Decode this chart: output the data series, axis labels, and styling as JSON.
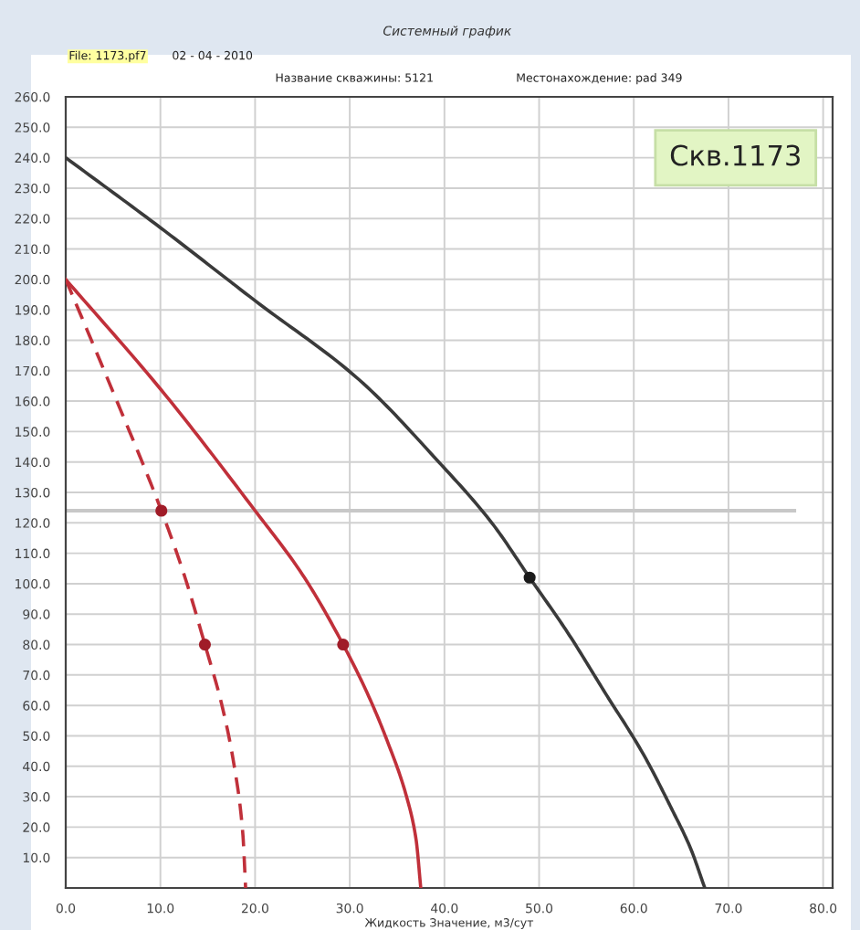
{
  "chart_data": {
    "type": "line",
    "title": "Системный график",
    "xlabel": "Жидкость Значение, м3/сут",
    "annotations": [
      "File: 1173.pf7",
      "02 - 04 - 2010",
      "Название скважины: 5121",
      "Местонахождение: pad 349",
      "Скв.1173"
    ],
    "series": [
      {
        "color": "#3a3a3a",
        "line_style": "solid",
        "x": [
          0,
          10,
          20,
          31,
          39.4,
          45,
          49,
          53,
          57,
          61,
          64,
          66,
          67.5
        ],
        "values": [
          240,
          217,
          193,
          167,
          140,
          120,
          102,
          84,
          64,
          44,
          26,
          13,
          0
        ]
      },
      {
        "color": "#c0303a",
        "line_style": "solid",
        "x": [
          0,
          10,
          20,
          25,
          29.3,
          32,
          34,
          36,
          37,
          37.5
        ],
        "values": [
          200,
          164,
          124,
          103,
          80,
          63,
          48,
          30,
          16,
          0
        ]
      },
      {
        "color": "#c0303a",
        "line_style": "dashed",
        "x": [
          0,
          5,
          10.1,
          12.5,
          14.7,
          16.5,
          17.8,
          18.7,
          19
        ],
        "values": [
          200,
          163,
          124,
          103,
          80,
          60,
          40,
          18,
          0
        ]
      },
      {
        "type": "scatter",
        "marker": "circle",
        "color": "#1a1a1a",
        "x": [
          49
        ],
        "values": [
          102
        ]
      },
      {
        "type": "scatter",
        "marker": "circle",
        "color": "#a01c28",
        "x": [
          29.3,
          10.1,
          14.7
        ],
        "values": [
          80,
          124,
          80
        ]
      }
    ],
    "ref_lines": [
      {
        "axis": "y",
        "value": 124,
        "color": "#c8c8c8"
      }
    ],
    "xlim": [
      0,
      81
    ],
    "ylim": [
      0,
      260
    ],
    "xticks": [
      {
        "value": 0,
        "label": "0.0"
      },
      {
        "value": 10,
        "label": "10.0"
      },
      {
        "value": 20,
        "label": "20.0"
      },
      {
        "value": 30,
        "label": "30.0"
      },
      {
        "value": 40,
        "label": "40.0"
      },
      {
        "value": 50,
        "label": "50.0"
      },
      {
        "value": 60,
        "label": "60.0"
      },
      {
        "value": 70,
        "label": "70.0"
      },
      {
        "value": 80,
        "label": "80.0"
      }
    ],
    "yticks": [
      {
        "value": 10,
        "label": "10.0"
      },
      {
        "value": 20,
        "label": "20.0"
      },
      {
        "value": 30,
        "label": "30.0"
      },
      {
        "value": 40,
        "label": "40.0"
      },
      {
        "value": 50,
        "label": "50.0"
      },
      {
        "value": 60,
        "label": "60.0"
      },
      {
        "value": 70,
        "label": "70.0"
      },
      {
        "value": 80,
        "label": "80.0"
      },
      {
        "value": 90,
        "label": "90.0"
      },
      {
        "value": 100,
        "label": "100.0"
      },
      {
        "value": 110,
        "label": "110.0"
      },
      {
        "value": 120,
        "label": "120.0"
      },
      {
        "value": 130,
        "label": "130.0"
      },
      {
        "value": 140,
        "label": "140.0"
      },
      {
        "value": 150,
        "label": "150.0"
      },
      {
        "value": 160,
        "label": "160.0"
      },
      {
        "value": 170,
        "label": "170.0"
      },
      {
        "value": 180,
        "label": "180.0"
      },
      {
        "value": 190,
        "label": "190.0"
      },
      {
        "value": 200,
        "label": "200.0"
      },
      {
        "value": 210,
        "label": "210.0"
      },
      {
        "value": 220,
        "label": "220.0"
      },
      {
        "value": 230,
        "label": "230.0"
      },
      {
        "value": 240,
        "label": "240.0"
      },
      {
        "value": 250,
        "label": "250.0"
      },
      {
        "value": 260,
        "label": "260.0"
      }
    ],
    "grid": true
  }
}
